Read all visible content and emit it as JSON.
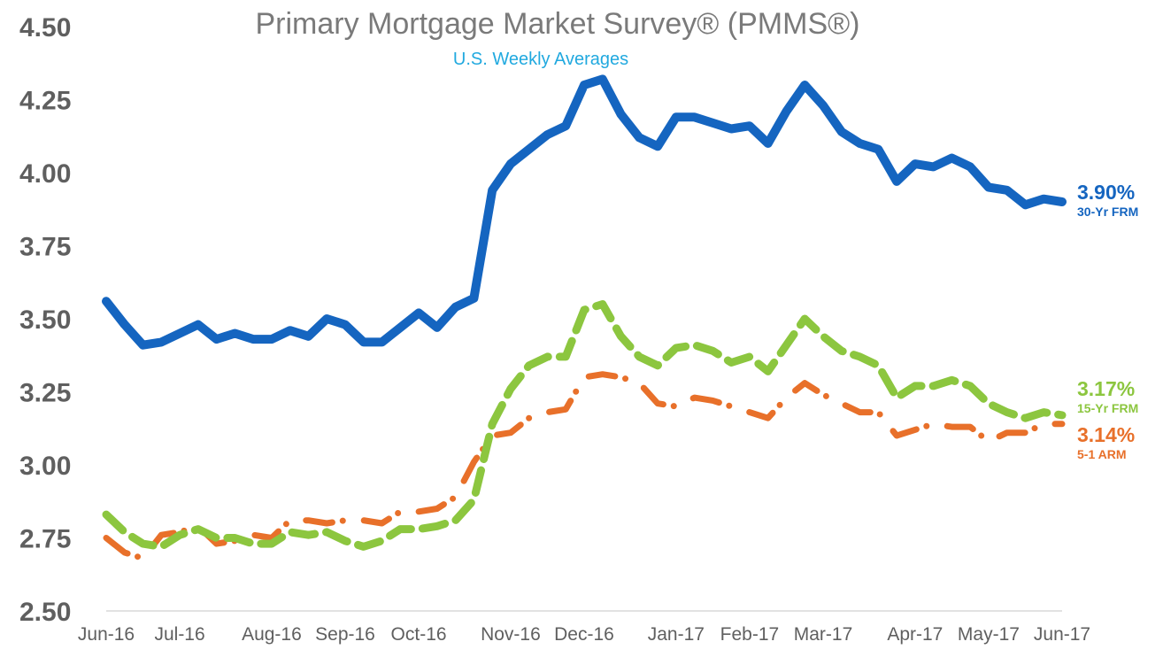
{
  "chart_data": {
    "type": "line",
    "title": "Primary Mortgage Market Survey® (PMMS®)",
    "subtitle": "U.S. Weekly Averages",
    "xlabel": "",
    "ylabel": "",
    "ylim": [
      2.5,
      4.5
    ],
    "yticks": [
      "2.50",
      "2.75",
      "3.00",
      "3.25",
      "3.50",
      "3.75",
      "4.00",
      "4.25",
      "4.50"
    ],
    "x_tick_labels": [
      "Jun-16",
      "Jul-16",
      "Aug-16",
      "Sep-16",
      "Oct-16",
      "Nov-16",
      "Dec-16",
      "Jan-17",
      "Feb-17",
      "Mar-17",
      "Apr-17",
      "May-17",
      "Jun-17"
    ],
    "x_tick_positions": [
      0,
      4,
      9,
      13,
      17,
      22,
      26,
      31,
      35,
      39,
      44,
      48,
      52
    ],
    "grid": false,
    "legend": "end-of-line labels (right)",
    "series": [
      {
        "name": "30-Yr FRM",
        "end_value_label": "3.90%",
        "color": "#1565c0",
        "style": "solid",
        "values": [
          3.56,
          3.48,
          3.41,
          3.42,
          3.45,
          3.48,
          3.43,
          3.45,
          3.43,
          3.43,
          3.46,
          3.44,
          3.5,
          3.48,
          3.42,
          3.42,
          3.47,
          3.52,
          3.47,
          3.54,
          3.57,
          3.94,
          4.03,
          4.08,
          4.13,
          4.16,
          4.3,
          4.32,
          4.2,
          4.12,
          4.09,
          4.19,
          4.19,
          4.17,
          4.15,
          4.16,
          4.1,
          4.21,
          4.3,
          4.23,
          4.14,
          4.1,
          4.08,
          3.97,
          4.03,
          4.02,
          4.05,
          4.02,
          3.95,
          3.94,
          3.89,
          3.91,
          3.9
        ]
      },
      {
        "name": "15-Yr FRM",
        "end_value_label": "3.17%",
        "color": "#8cc63f",
        "style": "dashed",
        "values": [
          2.83,
          2.77,
          2.73,
          2.72,
          2.76,
          2.78,
          2.75,
          2.75,
          2.73,
          2.73,
          2.77,
          2.76,
          2.77,
          2.74,
          2.72,
          2.74,
          2.78,
          2.78,
          2.79,
          2.81,
          2.88,
          3.14,
          3.26,
          3.34,
          3.37,
          3.37,
          3.53,
          3.55,
          3.44,
          3.37,
          3.34,
          3.4,
          3.41,
          3.39,
          3.35,
          3.37,
          3.32,
          3.41,
          3.5,
          3.44,
          3.39,
          3.37,
          3.34,
          3.23,
          3.27,
          3.27,
          3.29,
          3.27,
          3.21,
          3.18,
          3.16,
          3.18,
          3.17
        ]
      },
      {
        "name": "5-1 ARM",
        "end_value_label": "3.14%",
        "color": "#e8702a",
        "style": "dash-dot",
        "values": [
          2.75,
          2.7,
          2.68,
          2.76,
          2.77,
          2.79,
          2.73,
          2.74,
          2.76,
          2.75,
          2.81,
          2.81,
          2.8,
          2.81,
          2.81,
          2.8,
          2.84,
          2.84,
          2.85,
          2.89,
          3.01,
          3.1,
          3.11,
          3.16,
          3.18,
          3.19,
          3.3,
          3.31,
          3.3,
          3.28,
          3.21,
          3.2,
          3.23,
          3.22,
          3.2,
          3.18,
          3.16,
          3.23,
          3.28,
          3.24,
          3.21,
          3.18,
          3.18,
          3.1,
          3.12,
          3.14,
          3.13,
          3.13,
          3.08,
          3.11,
          3.11,
          3.14,
          3.14
        ]
      }
    ]
  }
}
